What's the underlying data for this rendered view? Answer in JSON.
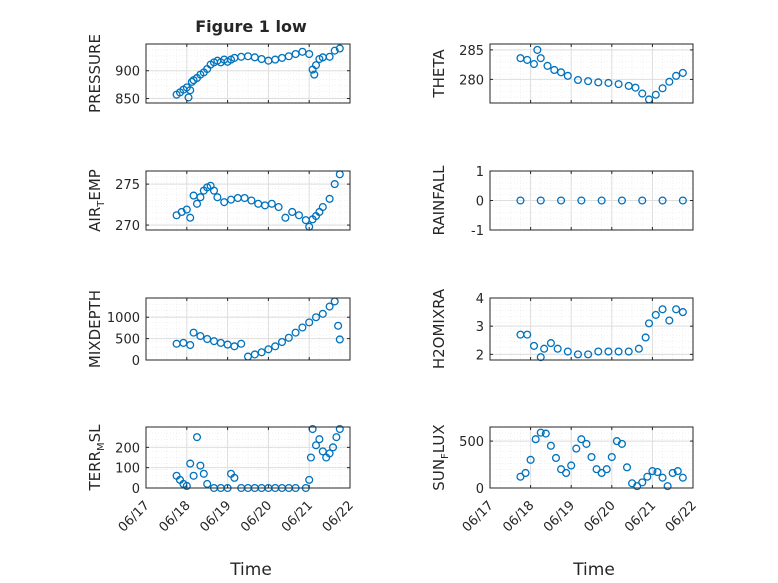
{
  "figure": {
    "title": "Figure 1 low",
    "xlabel": "Time",
    "x_ticks": [
      "06/17",
      "06/18",
      "06/19",
      "06/20",
      "06/21",
      "06/22"
    ]
  },
  "colors": {
    "marker": "#0072BD",
    "axis": "#262626",
    "grid": "#dedede",
    "minor_grid": "#e8e8e8"
  },
  "chart_data": [
    {
      "type": "scatter",
      "ylabel": "PRESSURE",
      "ylim": [
        842,
        948
      ],
      "yticks": [
        850,
        900
      ],
      "xlim": [
        "06/17",
        "06/22"
      ],
      "grid": true,
      "x": [
        "06/17 18:00",
        "06/17 20:00",
        "06/17 22:00",
        "06/18 00:00",
        "06/18 01:00",
        "06/18 02:00",
        "06/18 03:00",
        "06/18 04:00",
        "06/18 06:00",
        "06/18 08:00",
        "06/18 10:00",
        "06/18 12:00",
        "06/18 14:00",
        "06/18 16:00",
        "06/18 18:00",
        "06/18 20:00",
        "06/18 22:00",
        "06/19 00:00",
        "06/19 02:00",
        "06/19 04:00",
        "06/19 08:00",
        "06/19 12:00",
        "06/19 16:00",
        "06/19 20:00",
        "06/20 00:00",
        "06/20 04:00",
        "06/20 08:00",
        "06/20 12:00",
        "06/20 16:00",
        "06/20 20:00",
        "06/21 00:00",
        "06/21 02:00",
        "06/21 03:00",
        "06/21 04:00",
        "06/21 06:00",
        "06/21 08:00",
        "06/21 12:00",
        "06/21 15:00",
        "06/21 18:00"
      ],
      "y": [
        857,
        861,
        866,
        870,
        852,
        865,
        880,
        883,
        887,
        893,
        897,
        903,
        911,
        915,
        918,
        915,
        920,
        916,
        920,
        923,
        925,
        926,
        924,
        921,
        918,
        920,
        923,
        926,
        930,
        934,
        930,
        902,
        893,
        910,
        921,
        924,
        925,
        936,
        940
      ]
    },
    {
      "type": "scatter",
      "ylabel": "THETA",
      "ylim": [
        276,
        286
      ],
      "yticks": [
        280,
        285
      ],
      "xlim": [
        "06/17",
        "06/22"
      ],
      "grid": true,
      "x": [
        "06/17 18:00",
        "06/17 22:00",
        "06/18 02:00",
        "06/18 04:00",
        "06/18 06:00",
        "06/18 10:00",
        "06/18 14:00",
        "06/18 18:00",
        "06/18 22:00",
        "06/19 04:00",
        "06/19 10:00",
        "06/19 16:00",
        "06/19 22:00",
        "06/20 04:00",
        "06/20 10:00",
        "06/20 14:00",
        "06/20 18:00",
        "06/20 22:00",
        "06/21 02:00",
        "06/21 06:00",
        "06/21 10:00",
        "06/21 14:00",
        "06/21 18:00"
      ],
      "y": [
        283.6,
        283.3,
        282.6,
        285.0,
        283.6,
        282.3,
        281.6,
        281.2,
        280.6,
        279.9,
        279.7,
        279.5,
        279.4,
        279.2,
        278.9,
        278.6,
        277.6,
        276.6,
        277.4,
        278.5,
        279.6,
        280.6,
        281.1
      ]
    },
    {
      "type": "scatter",
      "ylabel": "AIR_TEMP",
      "ylim": [
        269.4,
        276.6
      ],
      "yticks": [
        270,
        275
      ],
      "xlim": [
        "06/17",
        "06/22"
      ],
      "grid": true,
      "x": [
        "06/17 18:00",
        "06/17 21:00",
        "06/18 00:00",
        "06/18 02:00",
        "06/18 04:00",
        "06/18 06:00",
        "06/18 08:00",
        "06/18 10:00",
        "06/18 12:00",
        "06/18 14:00",
        "06/18 16:00",
        "06/18 18:00",
        "06/18 22:00",
        "06/19 02:00",
        "06/19 06:00",
        "06/19 10:00",
        "06/19 14:00",
        "06/19 18:00",
        "06/19 22:00",
        "06/20 02:00",
        "06/20 06:00",
        "06/20 10:00",
        "06/20 14:00",
        "06/20 18:00",
        "06/20 22:00",
        "06/21 00:00",
        "06/21 02:00",
        "06/21 04:00",
        "06/21 06:00",
        "06/21 08:00",
        "06/21 12:00",
        "06/21 15:00",
        "06/21 18:00"
      ],
      "y": [
        271.2,
        271.6,
        271.9,
        270.9,
        273.6,
        272.6,
        273.4,
        274.2,
        274.6,
        274.8,
        274.2,
        273.4,
        272.8,
        273.1,
        273.3,
        273.3,
        273.0,
        272.6,
        272.4,
        272.6,
        272.2,
        270.9,
        271.6,
        271.2,
        270.6,
        269.8,
        270.7,
        271.1,
        271.6,
        272.2,
        273.2,
        275.0,
        276.2
      ]
    },
    {
      "type": "scatter",
      "ylabel": "RAINFALL",
      "ylim": [
        -1,
        1
      ],
      "yticks": [
        -1,
        0,
        1
      ],
      "xlim": [
        "06/17",
        "06/22"
      ],
      "grid": true,
      "x": [
        "06/17 18:00",
        "06/18 06:00",
        "06/18 18:00",
        "06/19 06:00",
        "06/19 18:00",
        "06/20 06:00",
        "06/20 18:00",
        "06/21 06:00",
        "06/21 18:00"
      ],
      "y": [
        0,
        0,
        0,
        0,
        0,
        0,
        0,
        0,
        0
      ]
    },
    {
      "type": "scatter",
      "ylabel": "MIXDEPTH",
      "ylim": [
        0,
        1450
      ],
      "yticks": [
        0,
        500,
        1000
      ],
      "xlim": [
        "06/17",
        "06/22"
      ],
      "grid": true,
      "x": [
        "06/17 18:00",
        "06/17 22:00",
        "06/18 02:00",
        "06/18 04:00",
        "06/18 08:00",
        "06/18 12:00",
        "06/18 16:00",
        "06/18 20:00",
        "06/19 00:00",
        "06/19 04:00",
        "06/19 08:00",
        "06/19 12:00",
        "06/19 16:00",
        "06/19 20:00",
        "06/20 00:00",
        "06/20 04:00",
        "06/20 08:00",
        "06/20 12:00",
        "06/20 16:00",
        "06/20 20:00",
        "06/21 00:00",
        "06/21 04:00",
        "06/21 08:00",
        "06/21 12:00",
        "06/21 15:00",
        "06/21 17:00",
        "06/21 18:00"
      ],
      "y": [
        380,
        400,
        350,
        640,
        560,
        490,
        440,
        400,
        360,
        320,
        380,
        80,
        130,
        180,
        250,
        320,
        420,
        520,
        640,
        760,
        880,
        1000,
        1080,
        1250,
        1370,
        800,
        480
      ]
    },
    {
      "type": "scatter",
      "ylabel": "H2OMIXRA",
      "ylim": [
        1.8,
        4.0
      ],
      "yticks": [
        2,
        3,
        4
      ],
      "xlim": [
        "06/17",
        "06/22"
      ],
      "grid": true,
      "x": [
        "06/17 18:00",
        "06/17 22:00",
        "06/18 02:00",
        "06/18 06:00",
        "06/18 08:00",
        "06/18 12:00",
        "06/18 16:00",
        "06/18 22:00",
        "06/19 04:00",
        "06/19 10:00",
        "06/19 16:00",
        "06/19 22:00",
        "06/20 04:00",
        "06/20 10:00",
        "06/20 16:00",
        "06/20 20:00",
        "06/20 22:00",
        "06/21 02:00",
        "06/21 06:00",
        "06/21 10:00",
        "06/21 14:00",
        "06/21 18:00"
      ],
      "y": [
        2.7,
        2.7,
        2.3,
        1.9,
        2.2,
        2.4,
        2.2,
        2.1,
        2.0,
        2.0,
        2.1,
        2.1,
        2.1,
        2.1,
        2.2,
        2.6,
        3.1,
        3.4,
        3.6,
        3.2,
        3.6,
        3.5
      ]
    },
    {
      "type": "scatter",
      "ylabel": "TERR_MSL",
      "ylim": [
        0,
        300
      ],
      "yticks": [
        0,
        100,
        200
      ],
      "xlim": [
        "06/17",
        "06/22"
      ],
      "grid": true,
      "x": [
        "06/17 18:00",
        "06/17 20:00",
        "06/17 22:00",
        "06/18 00:00",
        "06/18 02:00",
        "06/18 04:00",
        "06/18 06:00",
        "06/18 08:00",
        "06/18 10:00",
        "06/18 12:00",
        "06/18 16:00",
        "06/18 20:00",
        "06/19 00:00",
        "06/19 02:00",
        "06/19 04:00",
        "06/19 08:00",
        "06/19 12:00",
        "06/19 16:00",
        "06/19 20:00",
        "06/20 00:00",
        "06/20 04:00",
        "06/20 08:00",
        "06/20 12:00",
        "06/20 16:00",
        "06/20 22:00",
        "06/21 00:00",
        "06/21 01:00",
        "06/21 02:00",
        "06/21 04:00",
        "06/21 06:00",
        "06/21 08:00",
        "06/21 10:00",
        "06/21 12:00",
        "06/21 14:00",
        "06/21 16:00",
        "06/21 18:00"
      ],
      "y": [
        60,
        40,
        20,
        10,
        120,
        60,
        250,
        110,
        70,
        20,
        0,
        0,
        0,
        70,
        50,
        0,
        0,
        0,
        0,
        0,
        0,
        0,
        0,
        0,
        0,
        40,
        150,
        290,
        210,
        240,
        180,
        150,
        170,
        200,
        250,
        290
      ]
    },
    {
      "type": "scatter",
      "ylabel": "SUN_FLUX",
      "ylim": [
        0,
        650
      ],
      "yticks": [
        0,
        500
      ],
      "xlim": [
        "06/17",
        "06/22"
      ],
      "grid": true,
      "x": [
        "06/17 18:00",
        "06/17 21:00",
        "06/18 00:00",
        "06/18 03:00",
        "06/18 06:00",
        "06/18 09:00",
        "06/18 12:00",
        "06/18 15:00",
        "06/18 18:00",
        "06/18 21:00",
        "06/19 00:00",
        "06/19 03:00",
        "06/19 06:00",
        "06/19 09:00",
        "06/19 12:00",
        "06/19 15:00",
        "06/19 18:00",
        "06/19 21:00",
        "06/20 00:00",
        "06/20 03:00",
        "06/20 06:00",
        "06/20 09:00",
        "06/20 12:00",
        "06/20 15:00",
        "06/20 18:00",
        "06/20 21:00",
        "06/21 00:00",
        "06/21 03:00",
        "06/21 06:00",
        "06/21 09:00",
        "06/21 12:00",
        "06/21 15:00",
        "06/21 18:00"
      ],
      "y": [
        120,
        160,
        300,
        520,
        590,
        580,
        450,
        320,
        200,
        160,
        240,
        420,
        520,
        470,
        330,
        200,
        160,
        200,
        330,
        500,
        470,
        220,
        50,
        20,
        60,
        120,
        180,
        170,
        110,
        20,
        160,
        180,
        110
      ]
    }
  ]
}
